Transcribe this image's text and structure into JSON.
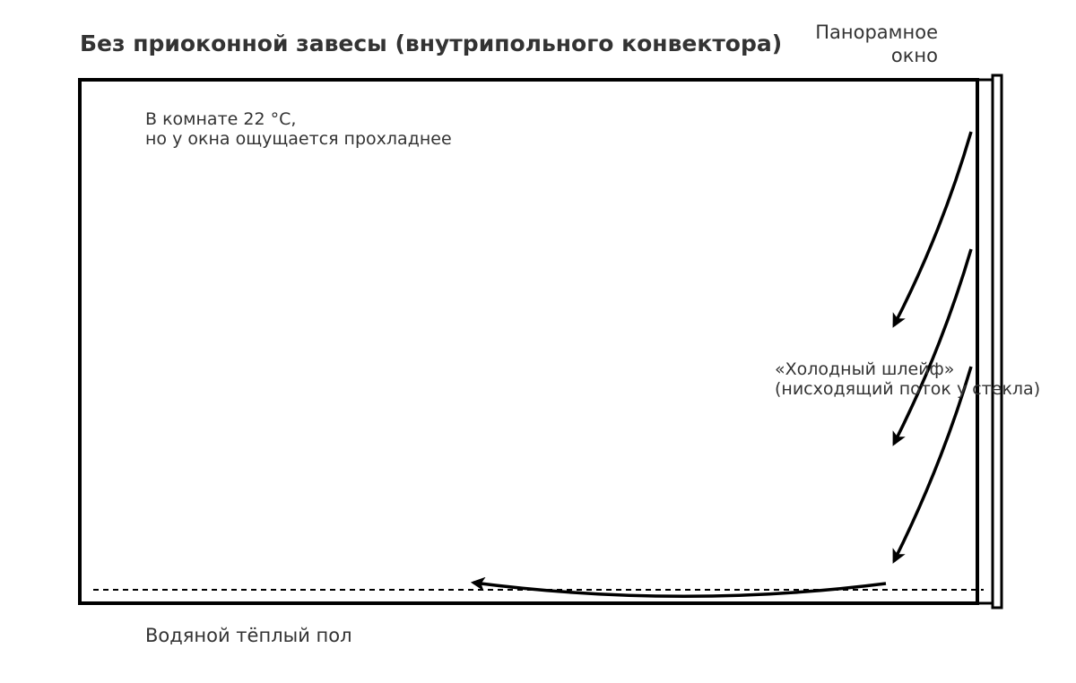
{
  "title": "Без приоконной завесы (внутрипольного конвектора)",
  "window_label": [
    "Панорамное",
    "окно"
  ],
  "room_note": [
    "В комнате 22 °C,",
    "но у окна ощущается прохладнее"
  ],
  "plume_label": [
    "«Холодный шлейф»",
    "(нисходящий поток у стекла)"
  ],
  "floor_label": "Водяной тёплый пол",
  "colors": {
    "text": "#333333",
    "stroke": "#000000",
    "background": "#ffffff"
  }
}
